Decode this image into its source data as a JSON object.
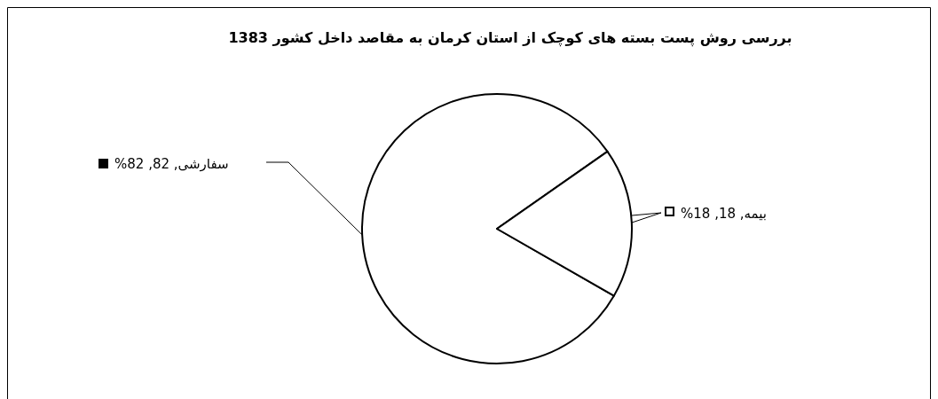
{
  "chart_data": {
    "type": "pie",
    "title": "بررسی روش پست بسته های کوچک از استان کرمان به مقاصد داخل کشور 1383",
    "categories": [
      "سفارشی",
      "بیمه"
    ],
    "values": [
      82,
      18
    ],
    "legend": "left",
    "colors": [
      "#ffffff",
      "#ffffff"
    ],
    "value_labels": [
      "82, 82%",
      "18, 18%"
    ]
  }
}
